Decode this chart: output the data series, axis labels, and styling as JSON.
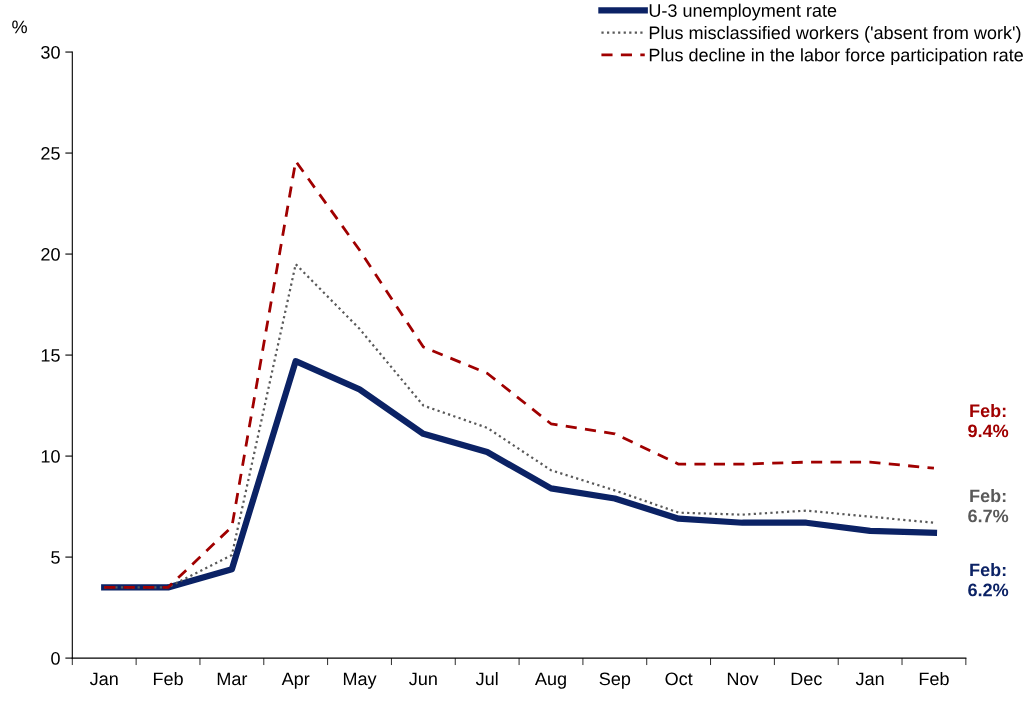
{
  "chart_data": {
    "type": "line",
    "ylabel": "%",
    "categories": [
      "Jan",
      "Feb",
      "Mar",
      "Apr",
      "May",
      "Jun",
      "Jul",
      "Aug",
      "Sep",
      "Oct",
      "Nov",
      "Dec",
      "Jan",
      "Feb"
    ],
    "series": [
      {
        "name": "U-3 unemployment rate",
        "color": "#0b2265",
        "line_style": "solid",
        "values": [
          3.5,
          3.5,
          4.4,
          14.7,
          13.3,
          11.1,
          10.2,
          8.4,
          7.9,
          6.9,
          6.7,
          6.7,
          6.3,
          6.2
        ]
      },
      {
        "name": "Plus misclassified workers ('absent from work')",
        "color": "#595959",
        "line_style": "dotted",
        "values": [
          3.5,
          3.5,
          5.1,
          19.5,
          16.3,
          12.5,
          11.4,
          9.3,
          8.3,
          7.2,
          7.1,
          7.3,
          7.0,
          6.7
        ]
      },
      {
        "name": "Plus decline in the labor force participation rate",
        "color": "#a00000",
        "line_style": "dashed",
        "values": [
          3.5,
          3.5,
          6.5,
          24.6,
          20.2,
          15.4,
          14.1,
          11.6,
          11.1,
          9.6,
          9.6,
          9.7,
          9.7,
          9.4
        ]
      }
    ],
    "annotations": [
      "Feb:\n6.2%",
      "Feb:\n6.7%",
      "Feb:\n9.4%"
    ],
    "ylim": [
      0,
      30
    ],
    "yticks": [
      0,
      5,
      10,
      15,
      20,
      25,
      30
    ],
    "grid": false,
    "legend": "top right",
    "marker": "none"
  }
}
